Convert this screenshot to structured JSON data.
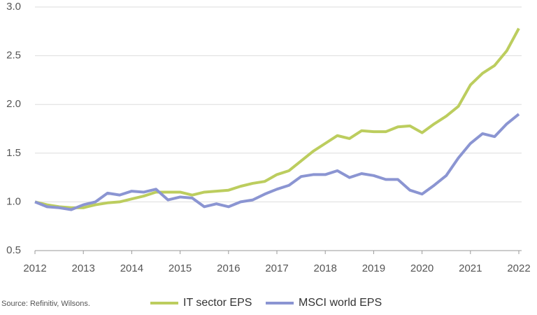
{
  "chart_data": {
    "type": "line",
    "x": [
      2012,
      2012.25,
      2012.5,
      2012.75,
      2013,
      2013.25,
      2013.5,
      2013.75,
      2014,
      2014.25,
      2014.5,
      2014.75,
      2015,
      2015.25,
      2015.5,
      2015.75,
      2016,
      2016.25,
      2016.5,
      2016.75,
      2017,
      2017.25,
      2017.5,
      2017.75,
      2018,
      2018.25,
      2018.5,
      2018.75,
      2019,
      2019.25,
      2019.5,
      2019.75,
      2020,
      2020.25,
      2020.5,
      2020.75,
      2021,
      2021.25,
      2021.5,
      2021.75,
      2022
    ],
    "series": [
      {
        "name": "IT sector EPS",
        "color": "#bccd5e",
        "values": [
          1.0,
          0.97,
          0.95,
          0.94,
          0.94,
          0.97,
          0.99,
          1.0,
          1.03,
          1.06,
          1.1,
          1.1,
          1.1,
          1.07,
          1.1,
          1.11,
          1.12,
          1.16,
          1.19,
          1.21,
          1.28,
          1.32,
          1.42,
          1.52,
          1.6,
          1.68,
          1.65,
          1.73,
          1.72,
          1.72,
          1.77,
          1.78,
          1.71,
          1.8,
          1.88,
          1.98,
          2.2,
          2.32,
          2.4,
          2.55,
          2.78
        ]
      },
      {
        "name": "MSCI world EPS",
        "color": "#8b95d2",
        "values": [
          1.0,
          0.95,
          0.94,
          0.92,
          0.97,
          1.0,
          1.09,
          1.07,
          1.11,
          1.1,
          1.13,
          1.02,
          1.05,
          1.04,
          0.95,
          0.98,
          0.95,
          1.0,
          1.02,
          1.08,
          1.13,
          1.17,
          1.26,
          1.28,
          1.28,
          1.32,
          1.25,
          1.29,
          1.27,
          1.23,
          1.23,
          1.12,
          1.08,
          1.17,
          1.27,
          1.45,
          1.6,
          1.7,
          1.67,
          1.8,
          1.9
        ]
      }
    ],
    "xlim": [
      2012,
      2022
    ],
    "xticks": [
      2012,
      2013,
      2014,
      2015,
      2016,
      2017,
      2018,
      2019,
      2020,
      2021,
      2022
    ],
    "ylim": [
      0.5,
      3.0
    ],
    "yticks": [
      0.5,
      {
        "value": 1.0,
        "label": "1.0"
      },
      1.5,
      {
        "value": 2.0,
        "label": "2.0"
      },
      2.5,
      {
        "value": 3.0,
        "label": "3.0"
      }
    ],
    "grid": true,
    "legend": "bottom",
    "source": "Source: Refinitiv, Wilsons."
  }
}
